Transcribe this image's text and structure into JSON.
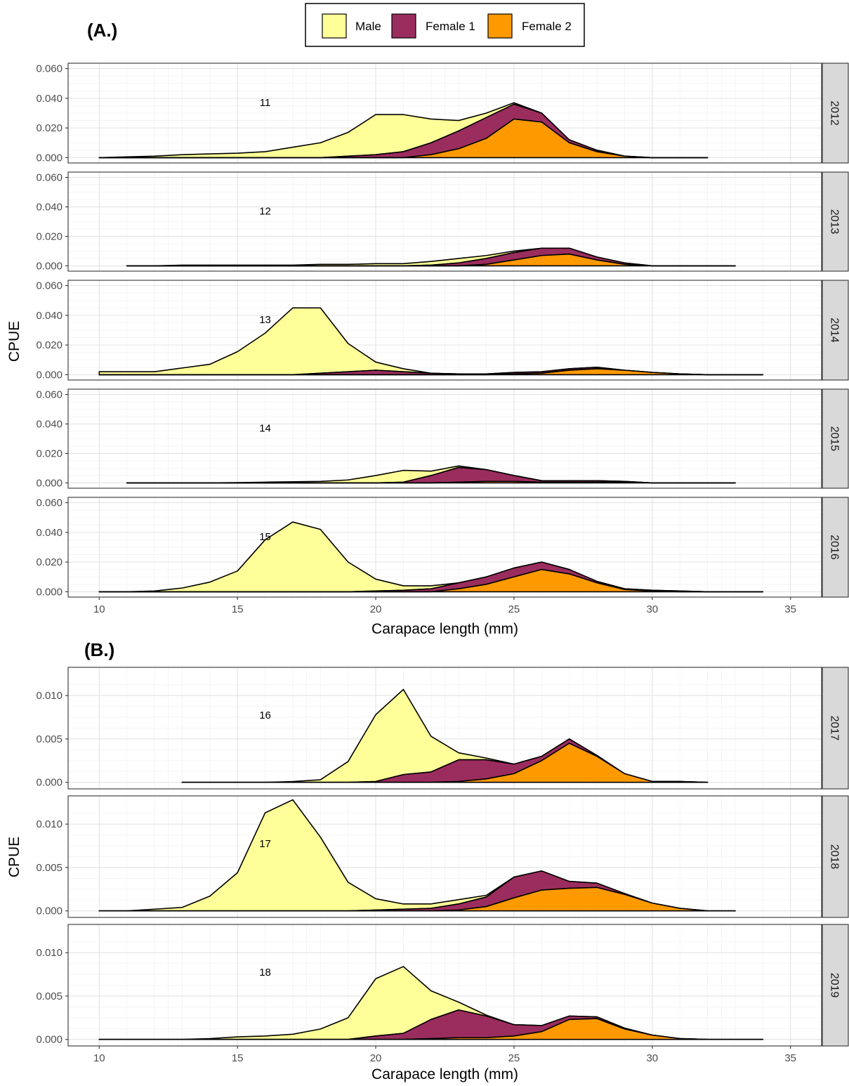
{
  "figure": {
    "panel_a_label": "(A.)",
    "panel_b_label": "(B.)"
  },
  "legend": {
    "entries": [
      {
        "label": "Male",
        "color": "#FFFF99"
      },
      {
        "label": "Female 1",
        "color": "#9B2D5E"
      },
      {
        "label": "Female 2",
        "color": "#FF9900"
      }
    ]
  },
  "chart_data": [
    {
      "type": "area",
      "panel": "(A.)",
      "stacked": true,
      "xlabel": "Carapace length (mm)",
      "ylabel": "CPUE",
      "xlim": [
        10,
        35
      ],
      "x_ticks": [
        10,
        15,
        20,
        25,
        30,
        35
      ],
      "x_tick_labels": [
        "10",
        "15",
        "20",
        "25",
        "30",
        "35"
      ],
      "ylim": [
        0,
        0.06
      ],
      "y_ticks": [
        0,
        0.02,
        0.04,
        0.06
      ],
      "y_tick_labels": [
        "0.000",
        "0.020",
        "0.040",
        "0.060"
      ],
      "grid": true,
      "legend_position": "top",
      "series_names": [
        "Male",
        "Female 1",
        "Female 2"
      ],
      "facets": [
        {
          "strip": "2012",
          "number": "11",
          "x": [
            10,
            11,
            12,
            13,
            14,
            15,
            16,
            17,
            18,
            19,
            20,
            21,
            22,
            23,
            24,
            25,
            26,
            27,
            28,
            29,
            30,
            31,
            32
          ],
          "female2": [
            0,
            0,
            0,
            0,
            0,
            0,
            0,
            0,
            0,
            0,
            0,
            0,
            0.002,
            0.006,
            0.013,
            0.026,
            0.024,
            0.01,
            0.004,
            0.001,
            0,
            0,
            0
          ],
          "female1": [
            0,
            0,
            0,
            0,
            0,
            0,
            0,
            0,
            0,
            0.001,
            0.002,
            0.004,
            0.008,
            0.012,
            0.014,
            0.01,
            0.006,
            0.002,
            0.001,
            0,
            0,
            0,
            0
          ],
          "male": [
            0,
            0.0005,
            0.001,
            0.002,
            0.0025,
            0.003,
            0.004,
            0.007,
            0.01,
            0.016,
            0.027,
            0.025,
            0.016,
            0.007,
            0.003,
            0.001,
            0,
            0,
            0,
            0,
            0,
            0,
            0
          ]
        },
        {
          "strip": "2013",
          "number": "12",
          "x": [
            11,
            12,
            13,
            14,
            15,
            16,
            17,
            18,
            19,
            20,
            21,
            22,
            23,
            24,
            25,
            26,
            27,
            28,
            29,
            30,
            31,
            32,
            33
          ],
          "female2": [
            0,
            0,
            0,
            0,
            0,
            0,
            0,
            0,
            0,
            0,
            0,
            0,
            0,
            0.001,
            0.004,
            0.007,
            0.008,
            0.004,
            0.001,
            0,
            0,
            0,
            0
          ],
          "female1": [
            0,
            0,
            0,
            0,
            0,
            0,
            0,
            0,
            0,
            0,
            0,
            0.0005,
            0.002,
            0.004,
            0.005,
            0.005,
            0.004,
            0.002,
            0.001,
            0,
            0,
            0,
            0
          ],
          "male": [
            0,
            0,
            0.0005,
            0.0005,
            0.0005,
            0.0005,
            0.0005,
            0.001,
            0.001,
            0.0015,
            0.0015,
            0.0025,
            0.003,
            0.002,
            0.001,
            0,
            0,
            0,
            0,
            0,
            0,
            0,
            0
          ]
        },
        {
          "strip": "2014",
          "number": "13",
          "x": [
            10,
            11,
            12,
            13,
            14,
            15,
            16,
            17,
            18,
            19,
            20,
            21,
            22,
            23,
            24,
            25,
            26,
            27,
            28,
            29,
            30,
            31,
            32,
            33,
            34
          ],
          "female2": [
            0,
            0,
            0,
            0,
            0,
            0,
            0,
            0,
            0,
            0,
            0,
            0,
            0,
            0,
            0,
            0.0005,
            0.001,
            0.003,
            0.004,
            0.003,
            0.0015,
            0.0005,
            0,
            0,
            0
          ],
          "female1": [
            0,
            0,
            0,
            0,
            0,
            0,
            0,
            0,
            0.001,
            0.002,
            0.003,
            0.002,
            0.001,
            0.0005,
            0.0005,
            0.001,
            0.001,
            0.001,
            0.001,
            0,
            0,
            0,
            0,
            0,
            0
          ],
          "male": [
            0.002,
            0.002,
            0.002,
            0.0045,
            0.007,
            0.0155,
            0.028,
            0.045,
            0.044,
            0.019,
            0.0055,
            0.002,
            0,
            0,
            0,
            0,
            0,
            0,
            0,
            0,
            0,
            0,
            0,
            0,
            0
          ]
        },
        {
          "strip": "2015",
          "number": "14",
          "x": [
            11,
            12,
            13,
            14,
            15,
            16,
            17,
            18,
            19,
            20,
            21,
            22,
            23,
            24,
            25,
            26,
            27,
            28,
            29,
            30,
            31,
            32,
            33
          ],
          "female2": [
            0,
            0,
            0,
            0,
            0,
            0,
            0,
            0,
            0,
            0,
            0,
            0,
            0.0005,
            0.001,
            0.001,
            0.0005,
            0.0005,
            0.0005,
            0.0005,
            0,
            0,
            0,
            0
          ],
          "female1": [
            0,
            0,
            0,
            0,
            0,
            0,
            0,
            0,
            0,
            0,
            0.0005,
            0.005,
            0.01,
            0.008,
            0.004,
            0.001,
            0.001,
            0.001,
            0.0005,
            0,
            0,
            0,
            0
          ],
          "male": [
            0,
            0,
            0,
            0,
            0.0002,
            0.0005,
            0.0008,
            0.001,
            0.002,
            0.005,
            0.008,
            0.003,
            0.001,
            0,
            0,
            0,
            0,
            0,
            0,
            0,
            0,
            0,
            0
          ]
        },
        {
          "strip": "2016",
          "number": "15",
          "x": [
            10,
            11,
            12,
            13,
            14,
            15,
            16,
            17,
            18,
            19,
            20,
            21,
            22,
            23,
            24,
            25,
            26,
            27,
            28,
            29,
            30,
            31,
            32,
            33,
            34
          ],
          "female2": [
            0,
            0,
            0,
            0,
            0,
            0,
            0,
            0,
            0,
            0,
            0,
            0,
            0,
            0.002,
            0.005,
            0.01,
            0.015,
            0.012,
            0.006,
            0.0015,
            0.0005,
            0,
            0,
            0,
            0
          ],
          "female1": [
            0,
            0,
            0,
            0,
            0,
            0,
            0,
            0,
            0,
            0,
            0.0005,
            0.001,
            0.002,
            0.004,
            0.005,
            0.006,
            0.005,
            0.003,
            0.001,
            0.0005,
            0.0005,
            0.0005,
            0,
            0,
            0
          ],
          "male": [
            0,
            0,
            0.0005,
            0.0025,
            0.0065,
            0.014,
            0.035,
            0.047,
            0.042,
            0.02,
            0.008,
            0.003,
            0.002,
            0,
            0,
            0,
            0,
            0,
            0,
            0,
            0,
            0,
            0,
            0,
            0
          ]
        }
      ]
    },
    {
      "type": "area",
      "panel": "(B.)",
      "stacked": true,
      "xlabel": "Carapace length (mm)",
      "ylabel": "CPUE",
      "xlim": [
        10,
        35
      ],
      "x_ticks": [
        10,
        15,
        20,
        25,
        30,
        35
      ],
      "x_tick_labels": [
        "10",
        "15",
        "20",
        "25",
        "30",
        "35"
      ],
      "ylim": [
        0,
        0.0125
      ],
      "y_ticks": [
        0,
        0.005,
        0.01
      ],
      "y_tick_labels": [
        "0.000",
        "0.005",
        "0.010"
      ],
      "grid": true,
      "series_names": [
        "Male",
        "Female 1",
        "Female 2"
      ],
      "facets": [
        {
          "strip": "2017",
          "number": "16",
          "x": [
            13,
            14,
            15,
            16,
            17,
            18,
            19,
            20,
            21,
            22,
            23,
            24,
            25,
            26,
            27,
            28,
            29,
            30,
            31,
            32
          ],
          "female2": [
            0,
            0,
            0,
            0,
            0,
            0,
            0,
            0,
            0,
            0,
            0.0001,
            0.0004,
            0.001,
            0.0025,
            0.0045,
            0.003,
            0.001,
            0.0001,
            0.0001,
            0
          ],
          "female1": [
            0,
            0,
            0,
            0,
            0,
            0,
            0,
            0.0001,
            0.0009,
            0.0012,
            0.0025,
            0.0022,
            0.0011,
            0.0005,
            0.0005,
            0.0001,
            0,
            0,
            0,
            0
          ],
          "male": [
            0,
            0,
            0,
            0,
            0.0001,
            0.0003,
            0.0024,
            0.0077,
            0.0098,
            0.0041,
            0.0008,
            0.0002,
            0,
            0,
            0,
            0,
            0,
            0,
            0,
            0
          ]
        },
        {
          "strip": "2018",
          "number": "17",
          "x": [
            10,
            11,
            12,
            13,
            14,
            15,
            16,
            17,
            18,
            19,
            20,
            21,
            22,
            23,
            24,
            25,
            26,
            27,
            28,
            29,
            30,
            31,
            32,
            33
          ],
          "female2": [
            0,
            0,
            0,
            0,
            0,
            0,
            0,
            0,
            0,
            0,
            0,
            0,
            0,
            0.0001,
            0.0005,
            0.0015,
            0.0024,
            0.0026,
            0.0027,
            0.0019,
            0.0009,
            0.0003,
            0,
            0
          ],
          "female1": [
            0,
            0,
            0,
            0,
            0,
            0,
            0,
            0,
            0,
            0,
            0.0001,
            0.0002,
            0.0003,
            0.0007,
            0.0011,
            0.0024,
            0.0022,
            0.0008,
            0.0005,
            0.0001,
            0,
            0,
            0,
            0
          ],
          "male": [
            0,
            0,
            0.0002,
            0.0004,
            0.0017,
            0.0044,
            0.0113,
            0.0128,
            0.0085,
            0.0033,
            0.0013,
            0.0006,
            0.0005,
            0.0005,
            0.0002,
            0,
            0,
            0,
            0,
            0,
            0,
            0,
            0,
            0
          ]
        },
        {
          "strip": "2019",
          "number": "18",
          "x": [
            10,
            11,
            12,
            13,
            14,
            15,
            16,
            17,
            18,
            19,
            20,
            21,
            22,
            23,
            24,
            25,
            26,
            27,
            28,
            29,
            30,
            31,
            32,
            33,
            34
          ],
          "female2": [
            0,
            0,
            0,
            0,
            0,
            0,
            0,
            0,
            0,
            0,
            0,
            0,
            0.0001,
            0.0002,
            0.0002,
            0.0004,
            0.0009,
            0.0023,
            0.0024,
            0.0012,
            0.0005,
            0.0001,
            0,
            0,
            0
          ],
          "female1": [
            0,
            0,
            0,
            0,
            0,
            0,
            0,
            0,
            0,
            0,
            0.0004,
            0.0007,
            0.0022,
            0.0032,
            0.0025,
            0.0013,
            0.0007,
            0.0004,
            0.0002,
            0.0001,
            0,
            0,
            0,
            0,
            0
          ],
          "male": [
            0,
            0,
            0,
            0,
            0.0001,
            0.0003,
            0.0004,
            0.0006,
            0.0012,
            0.0025,
            0.0066,
            0.0077,
            0.0033,
            0.0009,
            0.0001,
            0,
            0,
            0,
            0,
            0,
            0,
            0,
            0,
            0,
            0
          ]
        }
      ]
    }
  ]
}
